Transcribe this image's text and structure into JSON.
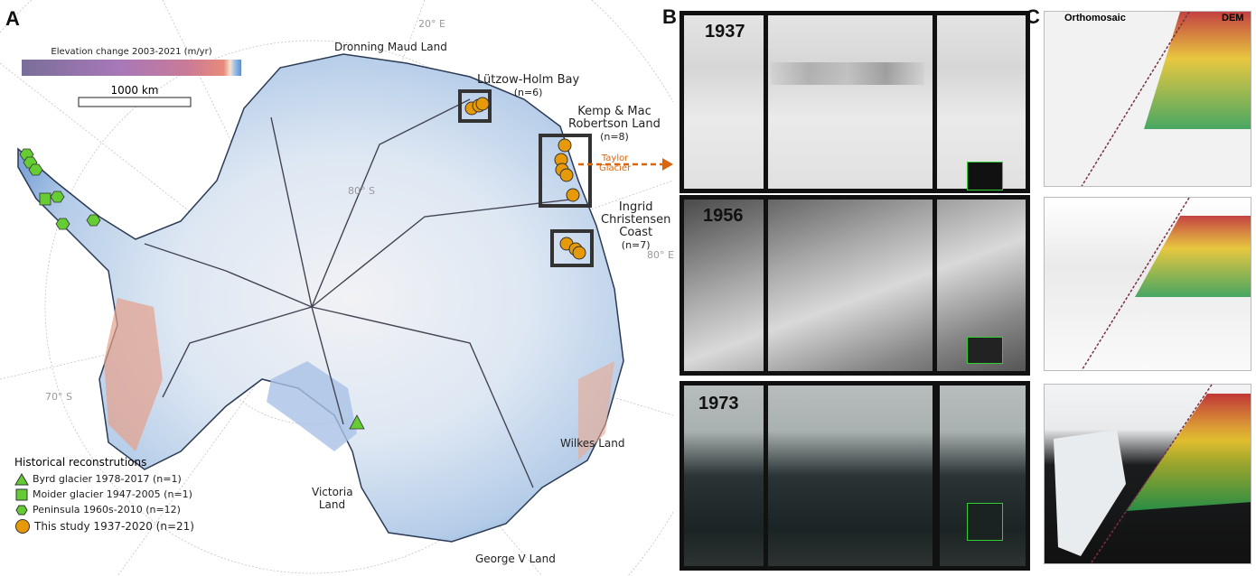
{
  "panels": {
    "a": "A",
    "b": "B",
    "c": "C"
  },
  "colorbar": {
    "title": "Elevation change 2003-2021 (m/yr)"
  },
  "scalebar": {
    "label": "1000 km"
  },
  "graticule": {
    "lon20": "20° E",
    "lat80": "80° S",
    "lon80": "80° E",
    "lat70": "70° S"
  },
  "regions": {
    "dronning": "Dronning Maud Land",
    "wilkes": "Wilkes Land",
    "victoria": "Victoria Land",
    "georgev": "George V Land"
  },
  "sites": {
    "lutzow": {
      "name": "Lützow-Holm Bay",
      "n": "(n=6)"
    },
    "kemp": {
      "name1": "Kemp & Mac",
      "name2": "Robertson Land",
      "n": "(n=8)"
    },
    "ingrid": {
      "name1": "Ingrid",
      "name2": "Christensen",
      "name3": "Coast",
      "n": "(n=7)"
    },
    "taylor": {
      "name1": "Taylor",
      "name2": "Glacier"
    }
  },
  "legend": {
    "title": "Historical reconstrutions",
    "items": [
      {
        "label": "Byrd glacier 1978-2017 (n=1)",
        "symbol": "triangle"
      },
      {
        "label": "Moider glacier 1947-2005 (n=1)",
        "symbol": "square"
      },
      {
        "label": "Peninsula 1960s-2010 (n=12)",
        "symbol": "hexagon"
      },
      {
        "label": "This study 1937-2020 (n=21)",
        "symbol": "circle"
      }
    ]
  },
  "colors": {
    "historical": "#66cc33",
    "this_study": "#e69a0a",
    "arrow": "#d9660f",
    "box": "#333333"
  },
  "photos": {
    "years": [
      "1937",
      "1956",
      "1973"
    ]
  },
  "panel_c": {
    "left": "Orthomosaic",
    "right": "DEM"
  }
}
